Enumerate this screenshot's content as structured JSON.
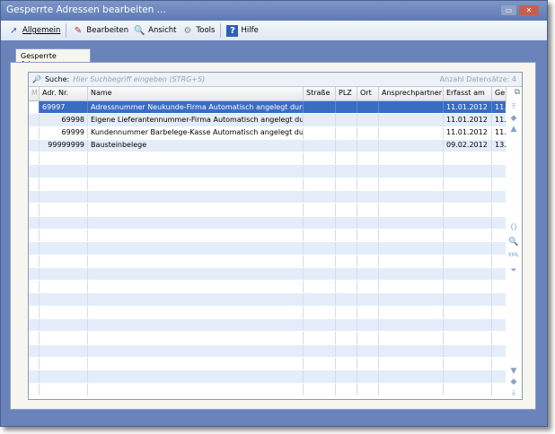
{
  "window": {
    "title": "Gesperrte Adressen bearbeiten ..."
  },
  "toolbar": {
    "items": [
      {
        "label": "Allgemein",
        "icon": "arrow-icon"
      },
      {
        "label": "Bearbeiten",
        "icon": "edit-icon"
      },
      {
        "label": "Ansicht",
        "icon": "view-icon"
      },
      {
        "label": "Tools",
        "icon": "gear-icon"
      },
      {
        "label": "Hilfe",
        "icon": "help-icon"
      }
    ]
  },
  "tab": {
    "label": "Gesperrte Adressen"
  },
  "search": {
    "label": "Suche:",
    "placeholder": "Hier Suchbegriff eingeben (STRG+S)",
    "count": "Anzahl Datensätze: 4"
  },
  "columns": [
    "M",
    "Adr. Nr.",
    "Name",
    "Straße",
    "PLZ",
    "Ort",
    "Ansprechpartner",
    "Erfasst am",
    "Ge"
  ],
  "rows": [
    {
      "adr": "69997",
      "name": "Adressnummer Neukunde-Firma Automatisch angelegt durch Einr",
      "erfasst": "11.01.2012",
      "ge": "11.",
      "selected": true
    },
    {
      "adr": "69998",
      "name": "Eigene Lieferantennummer-Firma Automatisch angelegt durch E",
      "erfasst": "11.01.2012",
      "ge": "11."
    },
    {
      "adr": "69999",
      "name": "Kundennummer Barbelege-Kasse Automatisch angelegt durch Ein",
      "erfasst": "11.01.2012",
      "ge": "11."
    },
    {
      "adr": "99999999",
      "name": "Bausteinbelege",
      "erfasst": "09.02.2012",
      "ge": "13."
    }
  ],
  "colors": {
    "selected": "#3a6cc4",
    "alt_row": "#e4edf9",
    "frame": "#6a84bb"
  }
}
